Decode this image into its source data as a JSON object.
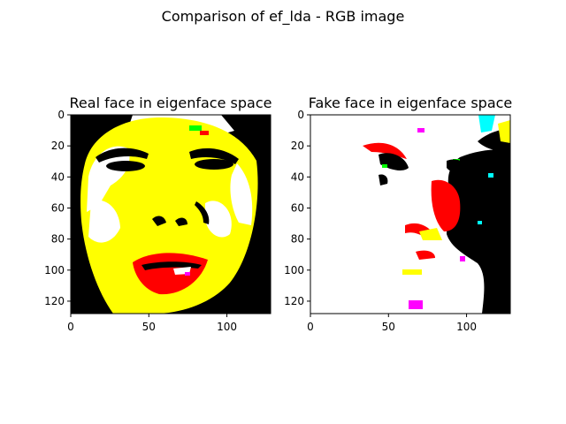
{
  "figure": {
    "suptitle": "Comparison of ef_lda - RGB image"
  },
  "chart_data": [
    {
      "type": "image",
      "title": "Real face in eigenface space",
      "xlim": [
        0,
        128
      ],
      "ylim": [
        128,
        0
      ],
      "xticks": [
        0,
        50,
        100
      ],
      "yticks": [
        0,
        20,
        40,
        60,
        80,
        100,
        120
      ],
      "colors": {
        "black": "#000000",
        "white": "#ffffff",
        "yellow": "#ffff00",
        "red": "#ff0000",
        "green": "#00ff00",
        "cyan": "#00ffff",
        "magenta": "#ff00ff"
      }
    },
    {
      "type": "image",
      "title": "Fake face in eigenface space",
      "xlim": [
        0,
        128
      ],
      "ylim": [
        128,
        0
      ],
      "xticks": [
        0,
        50,
        100
      ],
      "yticks": [
        0,
        20,
        40,
        60,
        80,
        100,
        120
      ],
      "colors": {
        "black": "#000000",
        "white": "#ffffff",
        "yellow": "#ffff00",
        "red": "#ff0000",
        "green": "#00ff00",
        "cyan": "#00ffff",
        "magenta": "#ff00ff"
      }
    }
  ]
}
